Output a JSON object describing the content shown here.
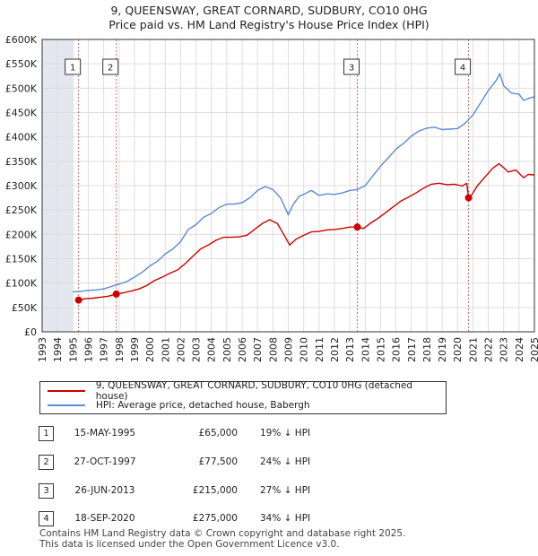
{
  "title_line1": "9, QUEENSWAY, GREAT CORNARD, SUDBURY, CO10 0HG",
  "title_line2": "Price paid vs. HM Land Registry's House Price Index (HPI)",
  "colors": {
    "property": "#cc0000",
    "hpi": "#5b8bd0",
    "marker_line": "#e06060",
    "shade": "#d8dde8",
    "grid": "#dddddd"
  },
  "chart_data": {
    "type": "line",
    "xlim": [
      1993,
      2025
    ],
    "ylim": [
      0,
      600000
    ],
    "x_ticks": [
      1993,
      1994,
      1995,
      1996,
      1997,
      1998,
      1999,
      2000,
      2001,
      2002,
      2003,
      2004,
      2005,
      2006,
      2007,
      2008,
      2009,
      2010,
      2011,
      2012,
      2013,
      2014,
      2015,
      2016,
      2017,
      2018,
      2019,
      2020,
      2021,
      2022,
      2023,
      2024,
      2025
    ],
    "y_ticks": [
      {
        "value": 0,
        "label": "£0"
      },
      {
        "value": 50000,
        "label": "£50K"
      },
      {
        "value": 100000,
        "label": "£100K"
      },
      {
        "value": 150000,
        "label": "£150K"
      },
      {
        "value": 200000,
        "label": "£200K"
      },
      {
        "value": 250000,
        "label": "£250K"
      },
      {
        "value": 300000,
        "label": "£300K"
      },
      {
        "value": 350000,
        "label": "£350K"
      },
      {
        "value": 400000,
        "label": "£400K"
      },
      {
        "value": 450000,
        "label": "£450K"
      },
      {
        "value": 500000,
        "label": "£500K"
      },
      {
        "value": 550000,
        "label": "£550K"
      },
      {
        "value": 600000,
        "label": "£600K"
      }
    ],
    "shaded_range": [
      1993,
      1995.0
    ],
    "series": [
      {
        "name": "9, QUEENSWAY, GREAT CORNARD, SUDBURY, CO10 0HG (detached house)",
        "x": [
          1995.37,
          1995.8,
          1996.3,
          1996.8,
          1997.3,
          1997.82,
          1998.3,
          1998.8,
          1999.3,
          1999.8,
          2000.3,
          2000.8,
          2001.3,
          2001.8,
          2002.3,
          2002.8,
          2003.3,
          2003.8,
          2004.3,
          2004.8,
          2005.3,
          2005.8,
          2006.3,
          2006.8,
          2007.3,
          2007.8,
          2008.3,
          2008.7,
          2009.1,
          2009.5,
          2010.0,
          2010.5,
          2011.0,
          2011.5,
          2012.0,
          2012.5,
          2013.0,
          2013.49,
          2013.9,
          2014.3,
          2014.8,
          2015.3,
          2015.8,
          2016.3,
          2016.8,
          2017.3,
          2017.8,
          2018.3,
          2018.8,
          2019.3,
          2019.8,
          2020.3,
          2020.6,
          2020.72,
          2020.9,
          2021.3,
          2021.8,
          2022.3,
          2022.7,
          2023.0,
          2023.3,
          2023.8,
          2024.3,
          2024.6,
          2025.0
        ],
        "y": [
          65000,
          68000,
          69000,
          71000,
          73000,
          77500,
          80000,
          84000,
          88000,
          95000,
          105000,
          112000,
          120000,
          127000,
          140000,
          155000,
          170000,
          178000,
          188000,
          194000,
          194000,
          195000,
          198000,
          210000,
          222000,
          230000,
          222000,
          200000,
          178000,
          190000,
          198000,
          205000,
          206000,
          209000,
          210000,
          212000,
          215000,
          215000,
          212000,
          222000,
          232000,
          244000,
          256000,
          268000,
          276000,
          285000,
          295000,
          303000,
          305000,
          302000,
          303000,
          299000,
          305000,
          275000,
          280000,
          300000,
          318000,
          336000,
          345000,
          337000,
          328000,
          332000,
          316000,
          323000,
          322000
        ]
      },
      {
        "name": "HPI: Average price, detached house, Babergh",
        "x": [
          1995.0,
          1995.5,
          1996.0,
          1996.5,
          1997.0,
          1997.5,
          1998.0,
          1998.5,
          1999.0,
          1999.5,
          2000.0,
          2000.5,
          2001.0,
          2001.5,
          2002.0,
          2002.5,
          2003.0,
          2003.5,
          2004.0,
          2004.5,
          2005.0,
          2005.5,
          2006.0,
          2006.5,
          2007.0,
          2007.5,
          2008.0,
          2008.5,
          2009.0,
          2009.3,
          2009.7,
          2010.0,
          2010.5,
          2011.0,
          2011.5,
          2012.0,
          2012.5,
          2013.0,
          2013.5,
          2014.0,
          2014.5,
          2015.0,
          2015.5,
          2016.0,
          2016.5,
          2017.0,
          2017.5,
          2018.0,
          2018.5,
          2019.0,
          2019.5,
          2020.0,
          2020.5,
          2021.0,
          2021.5,
          2022.0,
          2022.5,
          2022.75,
          2023.0,
          2023.5,
          2024.0,
          2024.3,
          2024.7,
          2025.0
        ],
        "y": [
          82000,
          83000,
          85000,
          86000,
          88000,
          93000,
          98000,
          103000,
          112000,
          122000,
          135000,
          145000,
          160000,
          170000,
          185000,
          210000,
          220000,
          235000,
          243000,
          255000,
          262000,
          262000,
          265000,
          275000,
          290000,
          298000,
          292000,
          275000,
          240000,
          260000,
          278000,
          282000,
          290000,
          280000,
          283000,
          282000,
          285000,
          290000,
          292000,
          300000,
          320000,
          340000,
          357000,
          375000,
          387000,
          402000,
          412000,
          418000,
          420000,
          415000,
          416000,
          417000,
          428000,
          445000,
          470000,
          495000,
          515000,
          530000,
          505000,
          490000,
          488000,
          475000,
          480000,
          482000
        ]
      }
    ],
    "sales": [
      {
        "label": "1",
        "x": 1995.37,
        "price": 65000
      },
      {
        "label": "2",
        "x": 1997.82,
        "price": 77500
      },
      {
        "label": "3",
        "x": 2013.49,
        "price": 215000
      },
      {
        "label": "4",
        "x": 2020.72,
        "price": 275000
      }
    ]
  },
  "legend": {
    "property_label": "9, QUEENSWAY, GREAT CORNARD, SUDBURY, CO10 0HG (detached house)",
    "hpi_label": "HPI: Average price, detached house, Babergh"
  },
  "sales_table": [
    {
      "num": "1",
      "date": "15-MAY-1995",
      "price": "£65,000",
      "hpi": "19% ↓ HPI"
    },
    {
      "num": "2",
      "date": "27-OCT-1997",
      "price": "£77,500",
      "hpi": "24% ↓ HPI"
    },
    {
      "num": "3",
      "date": "26-JUN-2013",
      "price": "£215,000",
      "hpi": "27% ↓ HPI"
    },
    {
      "num": "4",
      "date": "18-SEP-2020",
      "price": "£275,000",
      "hpi": "34% ↓ HPI"
    }
  ],
  "footer_line1": "Contains HM Land Registry data © Crown copyright and database right 2025.",
  "footer_line2": "This data is licensed under the Open Government Licence v3.0."
}
